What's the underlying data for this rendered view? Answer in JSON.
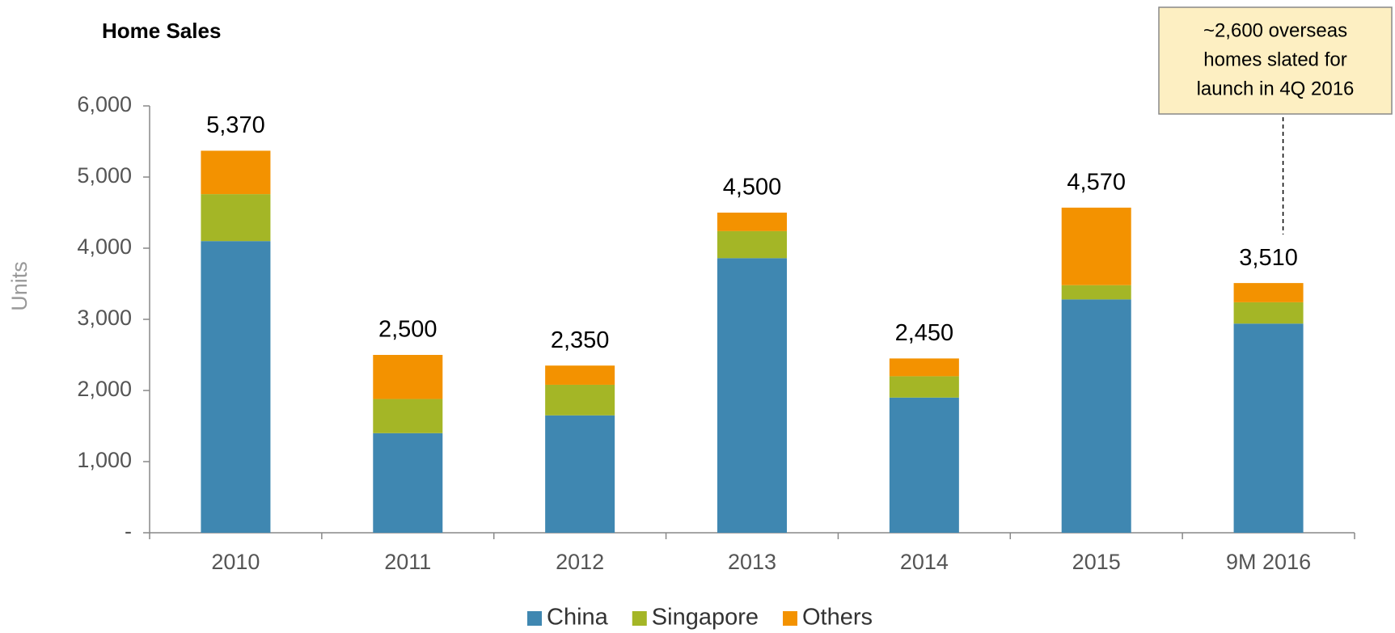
{
  "chart_data": {
    "type": "stacked_bar",
    "title": "Home Sales",
    "y_label": "Units",
    "categories": [
      "2010",
      "2011",
      "2012",
      "2013",
      "2014",
      "2015",
      "9M 2016"
    ],
    "series": [
      {
        "name": "China",
        "color": "#3f87b1",
        "values": [
          4100,
          1400,
          1650,
          3860,
          1900,
          3280,
          2940
        ]
      },
      {
        "name": "Singapore",
        "color": "#a4b626",
        "values": [
          660,
          480,
          430,
          380,
          300,
          200,
          300
        ]
      },
      {
        "name": "Others",
        "color": "#f39200",
        "values": [
          610,
          620,
          270,
          260,
          250,
          1090,
          270
        ]
      }
    ],
    "totals": [
      5370,
      2500,
      2350,
      4500,
      2450,
      4570,
      3510
    ],
    "totals_labels": [
      "5,370",
      "2,500",
      "2,350",
      "4,500",
      "2,450",
      "4,570",
      "3,510"
    ],
    "ylim": [
      0,
      6000
    ],
    "yticks": [
      {
        "value": 0,
        "label": "-"
      },
      {
        "value": 1000,
        "label": "1,000"
      },
      {
        "value": 2000,
        "label": "2,000"
      },
      {
        "value": 3000,
        "label": "3,000"
      },
      {
        "value": 4000,
        "label": "4,000"
      },
      {
        "value": 5000,
        "label": "5,000"
      },
      {
        "value": 6000,
        "label": "6,000"
      }
    ],
    "grid": false,
    "legend": "bottom",
    "annotation": {
      "lines": [
        "~2,600 overseas",
        "homes slated for",
        "launch in 4Q 2016"
      ],
      "category": 6
    }
  }
}
